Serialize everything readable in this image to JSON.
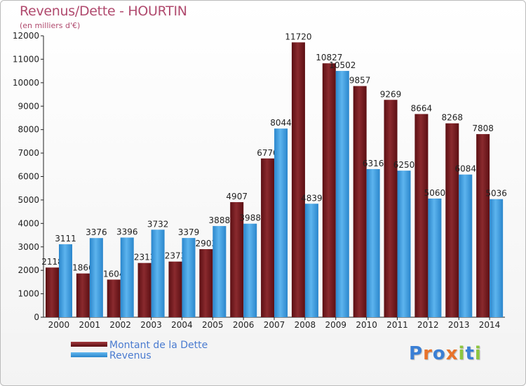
{
  "chart_data": {
    "type": "bar",
    "title": "Revenus/Dette - HOURTIN",
    "subtitle": "(en milliers d'€)",
    "categories": [
      "2000",
      "2001",
      "2002",
      "2003",
      "2004",
      "2005",
      "2006",
      "2007",
      "2008",
      "2009",
      "2010",
      "2011",
      "2012",
      "2013",
      "2014"
    ],
    "series": [
      {
        "name": "Montant de la Dette",
        "color": "#7a1e22",
        "values": [
          2118,
          1866,
          1604,
          2313,
          2373,
          2903,
          4907,
          6770,
          11720,
          10827,
          9857,
          9269,
          8664,
          8268,
          7808
        ]
      },
      {
        "name": "Revenus",
        "color": "#3a9ee3",
        "values": [
          3111,
          3376,
          3396,
          3732,
          3379,
          3888,
          3988,
          8044,
          4839,
          10502,
          6316,
          6250,
          5060,
          6084,
          5036
        ]
      }
    ],
    "ylim": [
      0,
      12000
    ],
    "yticks": [
      0,
      1000,
      2000,
      3000,
      4000,
      5000,
      6000,
      7000,
      8000,
      9000,
      10000,
      11000,
      12000
    ],
    "grid": false,
    "legend_position": "bottom-left"
  },
  "legend": {
    "items": [
      {
        "label": "Montant de la Dette",
        "color": "#7a1e22"
      },
      {
        "label": "Revenus",
        "color": "#3a9ee3"
      }
    ]
  },
  "brand": {
    "letters": [
      {
        "char": "P",
        "color": "#3a7fd5"
      },
      {
        "char": "r",
        "color": "#e8732a"
      },
      {
        "char": "o",
        "color": "#3a7fd5"
      },
      {
        "char": "x",
        "color": "#e8732a"
      },
      {
        "char": "i",
        "color": "#8dc63f"
      },
      {
        "char": "t",
        "color": "#3a7fd5"
      },
      {
        "char": "i",
        "color": "#8dc63f"
      }
    ]
  }
}
